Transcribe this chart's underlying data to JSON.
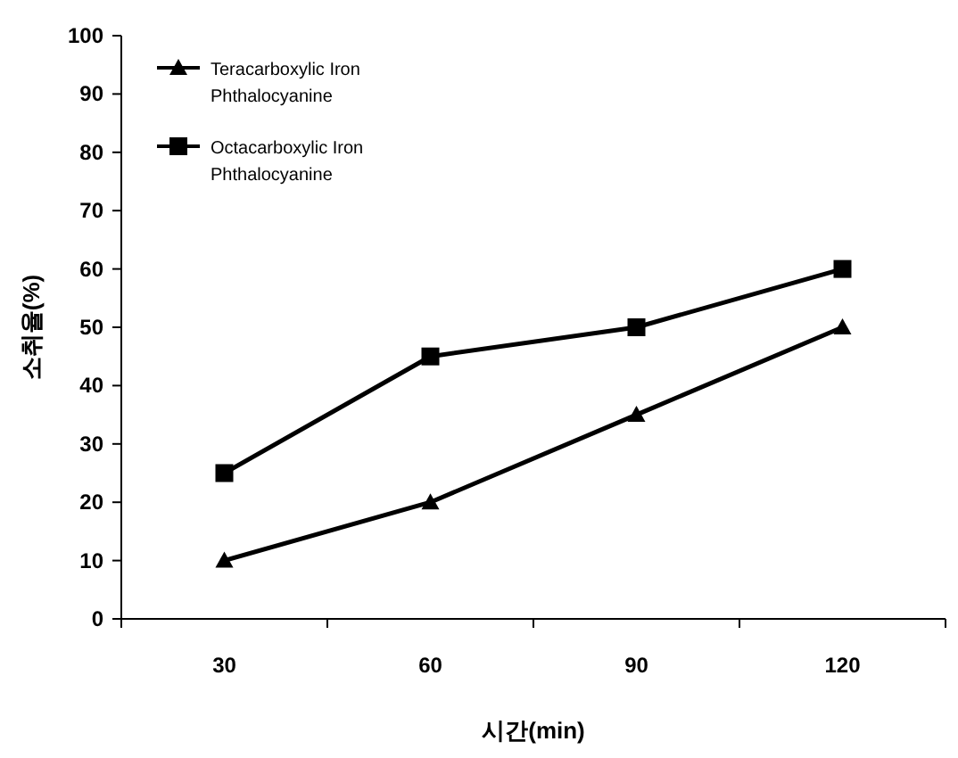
{
  "chart_data": {
    "type": "line",
    "categories": [
      "30",
      "60",
      "90",
      "120"
    ],
    "series": [
      {
        "name": "Teracarboxylic Iron Phthalocyanine",
        "color": "#000000",
        "marker": "triangle",
        "values": [
          10,
          20,
          35,
          50
        ]
      },
      {
        "name": "Octacarboxylic Iron Phthalocyanine",
        "color": "#000000",
        "marker": "square",
        "values": [
          25,
          45,
          50,
          60
        ]
      }
    ],
    "xlabel": "시간(min)",
    "ylabel": "소취율(%)",
    "ylim": [
      0,
      100
    ],
    "yticks": [
      0,
      10,
      20,
      30,
      40,
      50,
      60,
      70,
      80,
      90,
      100
    ],
    "legend": "top left",
    "grid": false
  }
}
